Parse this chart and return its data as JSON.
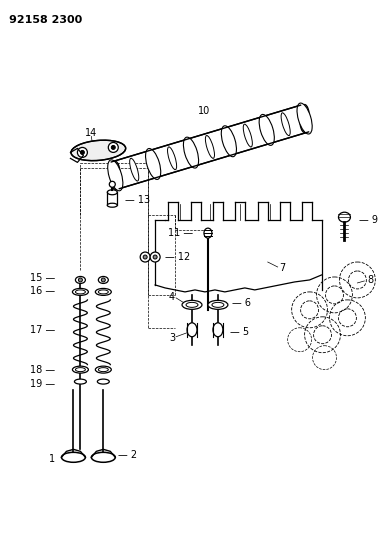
{
  "title": "92158 2300",
  "bg_color": "#ffffff",
  "line_color": "#000000",
  "text_color": "#000000",
  "title_fontsize": 8,
  "label_fontsize": 7,
  "figsize": [
    3.86,
    5.33
  ],
  "dpi": 100
}
